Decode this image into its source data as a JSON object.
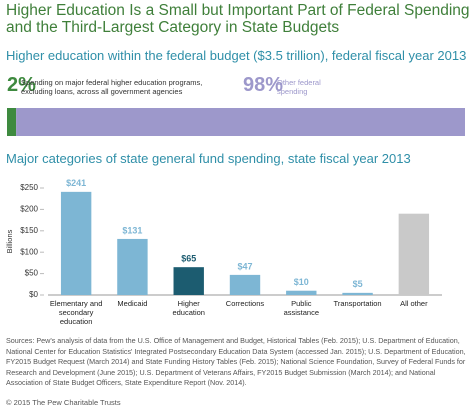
{
  "title": "Higher Education Is a Small but Important Part of Federal Spending and the Third-Largest Category in State Budgets",
  "chart_data": [
    {
      "type": "stacked_bar_h",
      "title": "Higher education within the federal budget ($3.5 trillion), federal fiscal year 2013",
      "xlim": [
        0,
        100
      ],
      "series": [
        {
          "name": "Spending on major federal higher education programs, excluding loans, across all government agencies",
          "values": [
            2
          ],
          "value_labels": [
            "2%"
          ],
          "color": "#3e8a3f"
        },
        {
          "name": "Other federal spending",
          "values": [
            98
          ],
          "value_labels": [
            "98%"
          ],
          "color": "#9d98cb"
        }
      ]
    },
    {
      "type": "bar",
      "title": "Major categories of state general fund spending, state fiscal year 2013",
      "ylabel": "Billions",
      "categories": [
        "Elementary and secondary education",
        "Medicaid",
        "Higher education",
        "Corrections",
        "Public assistance",
        "Transportation",
        "All other"
      ],
      "values": [
        241,
        131,
        65,
        47,
        10,
        5,
        190
      ],
      "value_labels": [
        "$241",
        "$131",
        "$65",
        "$47",
        "$10",
        "$5",
        null
      ],
      "colors": [
        "#7db6d4",
        "#7db6d4",
        "#1c5c70",
        "#7db6d4",
        "#7db6d4",
        "#7db6d4",
        "#c9c9c9"
      ],
      "ylim": [
        0,
        250
      ],
      "yticks": [
        {
          "value": 0,
          "label": "$0"
        },
        {
          "value": 50,
          "label": "$50"
        },
        {
          "value": 100,
          "label": "$100"
        },
        {
          "value": 150,
          "label": "$150"
        },
        {
          "value": 200,
          "label": "$200"
        },
        {
          "value": 250,
          "label": "$250"
        }
      ]
    }
  ],
  "source": "Sources: Pew's analysis of data from the U.S. Office of Management and Budget, Historical Tables (Feb. 2015); U.S. Department of Education, National Center for Education Statistics' Integrated Postsecondary Education Data System (accessed Jan. 2015); U.S. Department of Education, FY2015 Budget Request (March 2014) and State Funding History Tables (Feb. 2015); National Science Foundation, Survey of Federal Funds for Research and Development (June 2015); U.S. Department of Veterans Affairs, FY2015 Budget Submission (March 2014); and National Association of State Budget Officers, State Expenditure Report (Nov. 2014).",
  "copyright": "© 2015 The Pew Charitable Trusts"
}
